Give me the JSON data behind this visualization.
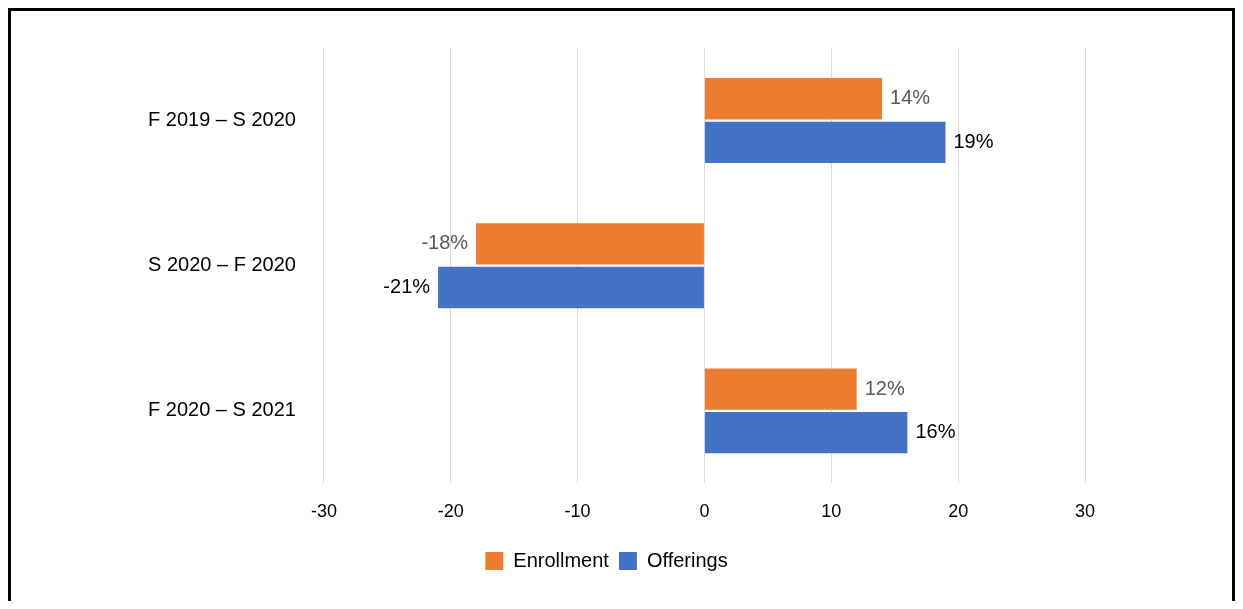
{
  "chart_data": {
    "type": "bar",
    "orientation": "horizontal",
    "categories": [
      "F 2019 – S 2020",
      "S 2020 – F 2020",
      "F 2020 – S 2021"
    ],
    "series": [
      {
        "name": "Enrollment",
        "color": "#ed7d31",
        "values": [
          14,
          -18,
          12
        ],
        "value_labels": [
          "14%",
          "-18%",
          "12%"
        ]
      },
      {
        "name": "Offerings",
        "color": "#4472c4",
        "values": [
          19,
          -21,
          16
        ],
        "value_labels": [
          "19%",
          "-21%",
          "16%"
        ]
      }
    ],
    "xlim": [
      -30,
      30
    ],
    "xticks": [
      -30,
      -20,
      -10,
      0,
      10,
      20,
      30
    ],
    "grid": "x",
    "legend": "bottom"
  }
}
